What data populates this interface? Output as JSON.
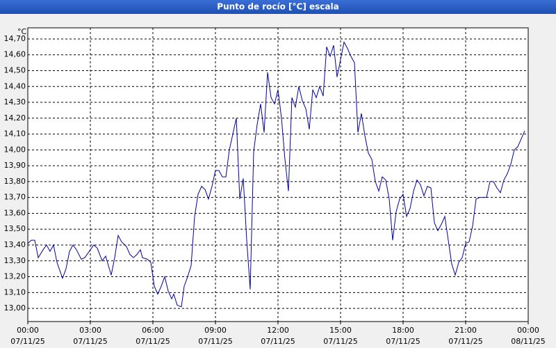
{
  "chart_data": {
    "type": "line",
    "title": "Punto de rocío [°C] escala",
    "y_unit": "°C",
    "x": [
      0,
      10,
      20,
      30,
      44,
      54,
      64,
      74,
      84,
      100,
      110,
      120,
      130,
      140,
      154,
      164,
      180,
      190,
      200,
      214,
      224,
      240,
      250,
      260,
      270,
      284,
      294,
      304,
      314,
      324,
      330,
      344,
      354,
      364,
      374,
      384,
      394,
      404,
      414,
      420,
      430,
      442,
      450,
      460,
      470,
      480,
      490,
      500,
      510,
      520,
      530,
      540,
      550,
      560,
      570,
      580,
      590,
      600,
      610,
      620,
      630,
      640,
      650,
      660,
      670,
      680,
      690,
      700,
      710,
      720,
      730,
      740,
      750,
      760,
      770,
      780,
      790,
      800,
      810,
      820,
      830,
      840,
      850,
      860,
      870,
      880,
      890,
      900,
      910,
      920,
      930,
      940,
      950,
      960,
      970,
      980,
      990,
      1000,
      1010,
      1020,
      1030,
      1040,
      1050,
      1060,
      1070,
      1080,
      1090,
      1100,
      1110,
      1120,
      1130,
      1140,
      1150,
      1160,
      1170,
      1180,
      1190,
      1200,
      1210,
      1220,
      1230,
      1240,
      1250,
      1260,
      1270,
      1280,
      1290,
      1300,
      1310,
      1320,
      1330,
      1340,
      1350,
      1360,
      1370,
      1380,
      1390,
      1400,
      1410,
      1420,
      1430
    ],
    "values": [
      13.41,
      13.43,
      13.43,
      13.32,
      13.37,
      13.4,
      13.36,
      13.4,
      13.29,
      13.19,
      13.25,
      13.36,
      13.4,
      13.37,
      13.31,
      13.32,
      13.37,
      13.4,
      13.38,
      13.3,
      13.33,
      13.21,
      13.32,
      13.46,
      13.42,
      13.39,
      13.34,
      13.32,
      13.34,
      13.37,
      13.32,
      13.31,
      13.29,
      13.14,
      13.09,
      13.14,
      13.2,
      13.11,
      13.06,
      13.09,
      13.02,
      13.01,
      13.14,
      13.2,
      13.27,
      13.58,
      13.72,
      13.77,
      13.75,
      13.69,
      13.77,
      13.87,
      13.87,
      13.83,
      13.83,
      14.0,
      14.1,
      14.2,
      13.69,
      13.82,
      13.43,
      13.12,
      13.99,
      14.16,
      14.29,
      14.11,
      14.49,
      14.33,
      14.29,
      14.38,
      14.2,
      13.94,
      13.74,
      14.33,
      14.27,
      14.4,
      14.31,
      14.26,
      14.13,
      14.38,
      14.33,
      14.4,
      14.34,
      14.65,
      14.59,
      14.66,
      14.46,
      14.57,
      14.68,
      14.64,
      14.59,
      14.55,
      14.11,
      14.23,
      14.09,
      13.98,
      13.94,
      13.8,
      13.74,
      13.83,
      13.81,
      13.69,
      13.43,
      13.61,
      13.69,
      13.72,
      13.58,
      13.63,
      13.74,
      13.81,
      13.78,
      13.71,
      13.77,
      13.76,
      13.54,
      13.49,
      13.53,
      13.58,
      13.43,
      13.28,
      13.21,
      13.29,
      13.32,
      13.41,
      13.42,
      13.52,
      13.69,
      13.7,
      13.7,
      13.7,
      13.8,
      13.8,
      13.76,
      13.73,
      13.81,
      13.85,
      13.91,
      14.0,
      14.02,
      14.07,
      14.12
    ],
    "color": "#0000a0",
    "xlim": [
      0,
      1440
    ],
    "xticks": [
      {
        "value": 0,
        "label": "00:00"
      },
      {
        "value": 180,
        "label": "03:00"
      },
      {
        "value": 360,
        "label": "06:00"
      },
      {
        "value": 540,
        "label": "09:00"
      },
      {
        "value": 720,
        "label": "12:00"
      },
      {
        "value": 900,
        "label": "15:00"
      },
      {
        "value": 1080,
        "label": "18:00"
      },
      {
        "value": 1260,
        "label": "21:00"
      },
      {
        "value": 1440,
        "label": "00:00"
      }
    ],
    "xtick_dates": [
      "07/11/25",
      "07/11/25",
      "07/11/25",
      "07/11/25",
      "07/11/25",
      "07/11/25",
      "07/11/25",
      "07/11/25",
      "08/11/25"
    ],
    "ylim": [
      12.917,
      14.77
    ],
    "yticks": [
      {
        "value": 13.0,
        "label": "13,00"
      },
      {
        "value": 13.1,
        "label": "13,10"
      },
      {
        "value": 13.2,
        "label": "13,20"
      },
      {
        "value": 13.3,
        "label": "13,30"
      },
      {
        "value": 13.4,
        "label": "13,40"
      },
      {
        "value": 13.5,
        "label": "13,50"
      },
      {
        "value": 13.6,
        "label": "13,60"
      },
      {
        "value": 13.7,
        "label": "13,70"
      },
      {
        "value": 13.8,
        "label": "13,80"
      },
      {
        "value": 13.9,
        "label": "13,90"
      },
      {
        "value": 14.0,
        "label": "14,00"
      },
      {
        "value": 14.1,
        "label": "14,10"
      },
      {
        "value": 14.2,
        "label": "14,20"
      },
      {
        "value": 14.3,
        "label": "14,30"
      },
      {
        "value": 14.4,
        "label": "14,40"
      },
      {
        "value": 14.5,
        "label": "14,50"
      },
      {
        "value": 14.6,
        "label": "14,60"
      },
      {
        "value": 14.7,
        "label": "14,70"
      }
    ],
    "grid": true
  }
}
